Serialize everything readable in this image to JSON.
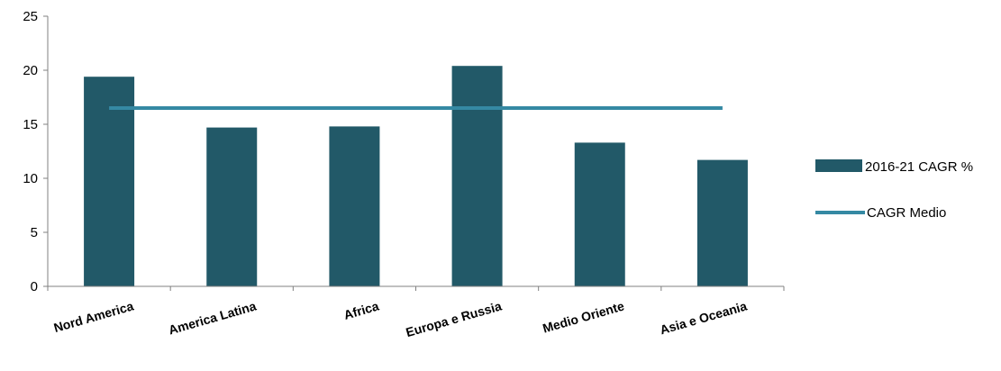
{
  "chart_data": {
    "type": "bar",
    "title": "",
    "xlabel": "",
    "ylabel": "",
    "categories": [
      "Nord America",
      "America Latina",
      "Africa",
      "Europa e Russia",
      "Medio Oriente",
      "Asia e Oceania"
    ],
    "series": [
      {
        "name": "2016-21 CAGR %",
        "type": "bar",
        "color": "#225968",
        "values": [
          19.4,
          14.7,
          14.8,
          20.4,
          13.3,
          11.7
        ]
      },
      {
        "name": "CAGR Medio",
        "type": "line",
        "color": "#3589a3",
        "values": [
          16.5,
          16.5,
          16.5,
          16.5,
          16.5,
          16.5
        ]
      }
    ],
    "ylim": [
      0,
      25
    ],
    "yticks": [
      "0",
      "5",
      "10",
      "15",
      "20",
      "25"
    ],
    "grid": false,
    "legend_position": "right"
  }
}
